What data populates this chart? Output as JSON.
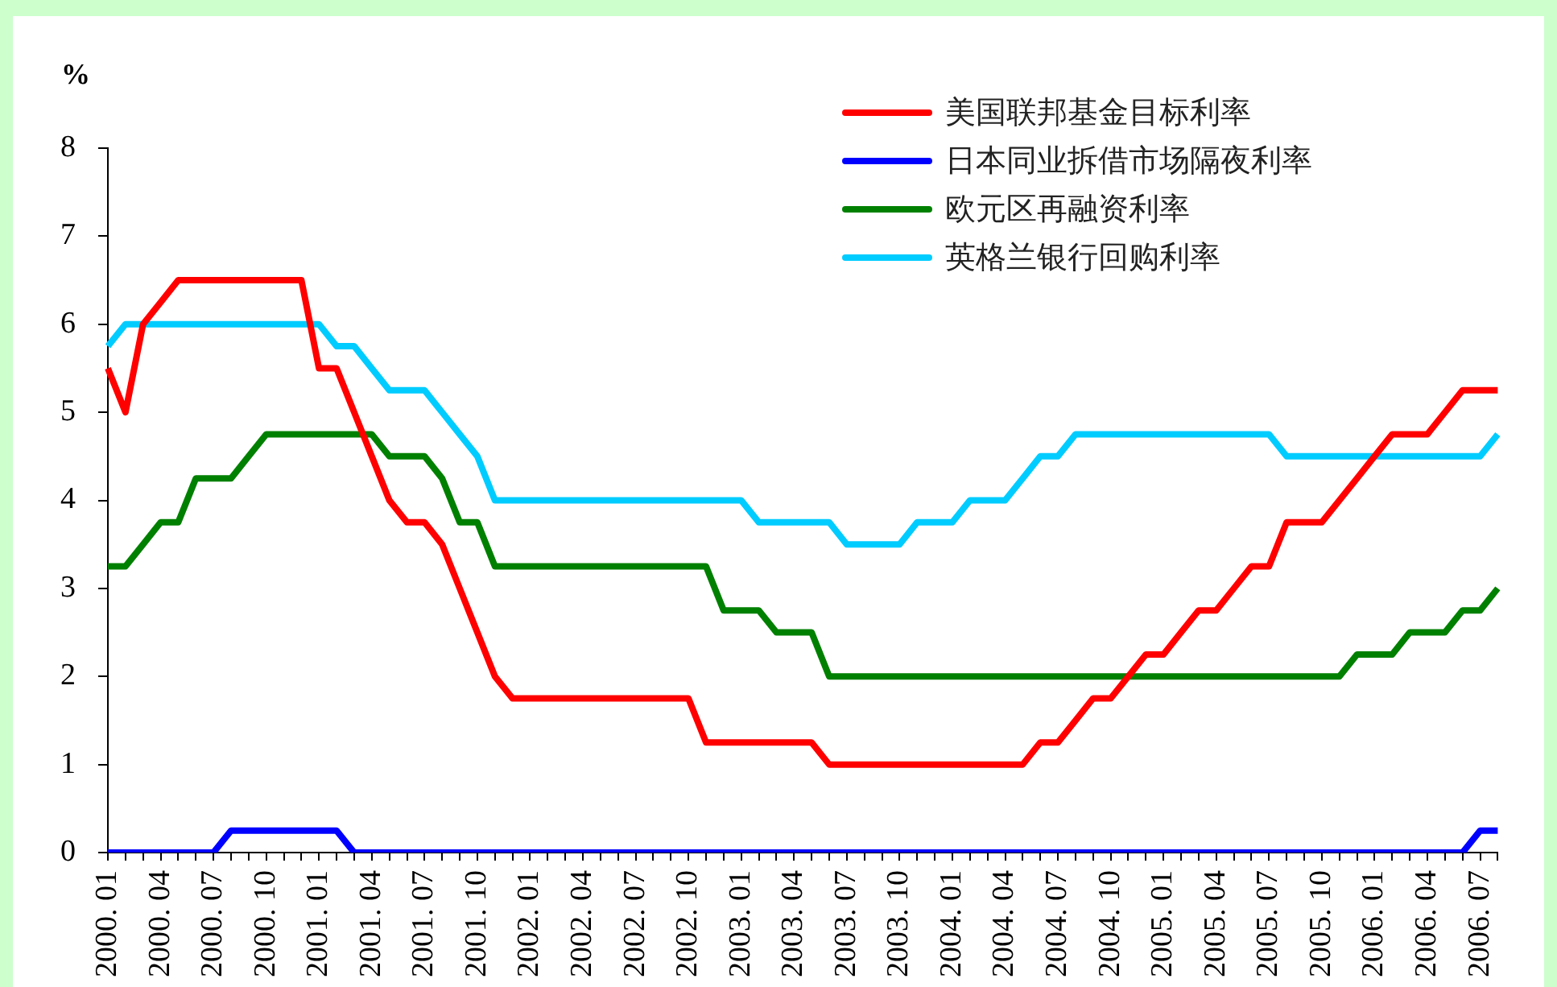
{
  "chart_data": {
    "type": "line",
    "ylabel": "%",
    "legend": "top right",
    "categories": [
      "2000. 01",
      null,
      null,
      "2000. 04",
      null,
      null,
      "2000. 07",
      null,
      null,
      "2000. 10",
      null,
      null,
      "2001. 01",
      null,
      null,
      "2001. 04",
      null,
      null,
      "2001. 07",
      null,
      null,
      "2001. 10",
      null,
      null,
      "2002. 01",
      null,
      null,
      "2002. 04",
      null,
      null,
      "2002. 07",
      null,
      null,
      "2002. 10",
      null,
      null,
      "2003. 01",
      null,
      null,
      "2003. 04",
      null,
      null,
      "2003. 07",
      null,
      null,
      "2003. 10",
      null,
      null,
      "2004. 01",
      null,
      null,
      "2004. 04",
      null,
      null,
      "2004. 07",
      null,
      null,
      "2004. 10",
      null,
      null,
      "2005. 01",
      null,
      null,
      "2005. 04",
      null,
      null,
      "2005. 07",
      null,
      null,
      "2005. 10",
      null,
      null,
      "2006. 01",
      null,
      null,
      "2006. 04",
      null,
      null,
      "2006. 07",
      null
    ],
    "ylim": [
      0,
      8
    ],
    "yticks": [
      0,
      1,
      2,
      3,
      4,
      5,
      6,
      7,
      8
    ],
    "series": [
      {
        "name": "美国联邦基金目标利率",
        "color": "#ff0000",
        "values": [
          5.5,
          5.0,
          6.0,
          6.25,
          6.5,
          6.5,
          6.5,
          6.5,
          6.5,
          6.5,
          6.5,
          6.5,
          5.5,
          5.5,
          5.0,
          4.5,
          4.0,
          3.75,
          3.75,
          3.5,
          3.0,
          2.5,
          2.0,
          1.75,
          1.75,
          1.75,
          1.75,
          1.75,
          1.75,
          1.75,
          1.75,
          1.75,
          1.75,
          1.75,
          1.25,
          1.25,
          1.25,
          1.25,
          1.25,
          1.25,
          1.25,
          1.0,
          1.0,
          1.0,
          1.0,
          1.0,
          1.0,
          1.0,
          1.0,
          1.0,
          1.0,
          1.0,
          1.0,
          1.25,
          1.25,
          1.5,
          1.75,
          1.75,
          2.0,
          2.25,
          2.25,
          2.5,
          2.75,
          2.75,
          3.0,
          3.25,
          3.25,
          3.75,
          3.75,
          3.75,
          4.0,
          4.25,
          4.5,
          4.75,
          4.75,
          4.75,
          5.0,
          5.25,
          5.25,
          5.25
        ]
      },
      {
        "name": "日本同业拆借市场隔夜利率",
        "color": "#0000ff",
        "values": [
          0,
          0,
          0,
          0,
          0,
          0,
          0,
          0.25,
          0.25,
          0.25,
          0.25,
          0.25,
          0.25,
          0.25,
          0,
          0,
          0,
          0,
          0,
          0,
          0,
          0,
          0,
          0,
          0,
          0,
          0,
          0,
          0,
          0,
          0,
          0,
          0,
          0,
          0,
          0,
          0,
          0,
          0,
          0,
          0,
          0,
          0,
          0,
          0,
          0,
          0,
          0,
          0,
          0,
          0,
          0,
          0,
          0,
          0,
          0,
          0,
          0,
          0,
          0,
          0,
          0,
          0,
          0,
          0,
          0,
          0,
          0,
          0,
          0,
          0,
          0,
          0,
          0,
          0,
          0,
          0,
          0,
          0.25,
          0.25
        ]
      },
      {
        "name": "欧元区再融资利率",
        "color": "#008000",
        "values": [
          3.25,
          3.25,
          3.5,
          3.75,
          3.75,
          4.25,
          4.25,
          4.25,
          4.5,
          4.75,
          4.75,
          4.75,
          4.75,
          4.75,
          4.75,
          4.75,
          4.5,
          4.5,
          4.5,
          4.25,
          3.75,
          3.75,
          3.25,
          3.25,
          3.25,
          3.25,
          3.25,
          3.25,
          3.25,
          3.25,
          3.25,
          3.25,
          3.25,
          3.25,
          3.25,
          2.75,
          2.75,
          2.75,
          2.5,
          2.5,
          2.5,
          2.0,
          2.0,
          2.0,
          2.0,
          2.0,
          2.0,
          2.0,
          2.0,
          2.0,
          2.0,
          2.0,
          2.0,
          2.0,
          2.0,
          2.0,
          2.0,
          2.0,
          2.0,
          2.0,
          2.0,
          2.0,
          2.0,
          2.0,
          2.0,
          2.0,
          2.0,
          2.0,
          2.0,
          2.0,
          2.0,
          2.25,
          2.25,
          2.25,
          2.5,
          2.5,
          2.5,
          2.75,
          2.75,
          3.0
        ]
      },
      {
        "name": "英格兰银行回购利率",
        "color": "#00ccff",
        "values": [
          5.75,
          6.0,
          6.0,
          6.0,
          6.0,
          6.0,
          6.0,
          6.0,
          6.0,
          6.0,
          6.0,
          6.0,
          6.0,
          5.75,
          5.75,
          5.5,
          5.25,
          5.25,
          5.25,
          5.0,
          4.75,
          4.5,
          4.0,
          4.0,
          4.0,
          4.0,
          4.0,
          4.0,
          4.0,
          4.0,
          4.0,
          4.0,
          4.0,
          4.0,
          4.0,
          4.0,
          4.0,
          3.75,
          3.75,
          3.75,
          3.75,
          3.75,
          3.5,
          3.5,
          3.5,
          3.5,
          3.75,
          3.75,
          3.75,
          4.0,
          4.0,
          4.0,
          4.25,
          4.5,
          4.5,
          4.75,
          4.75,
          4.75,
          4.75,
          4.75,
          4.75,
          4.75,
          4.75,
          4.75,
          4.75,
          4.75,
          4.75,
          4.5,
          4.5,
          4.5,
          4.5,
          4.5,
          4.5,
          4.5,
          4.5,
          4.5,
          4.5,
          4.5,
          4.5,
          4.75
        ]
      }
    ]
  }
}
